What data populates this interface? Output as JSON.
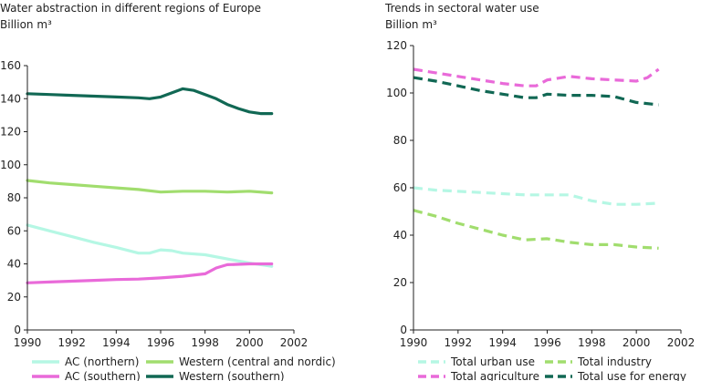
{
  "chart_data": [
    {
      "type": "line",
      "title": "Water abstraction in different regions of Europe",
      "ylabel": "Billion m³",
      "xlim": [
        1990,
        2002
      ],
      "ylim": [
        0,
        160
      ],
      "xticks": [
        1990,
        1992,
        1994,
        1996,
        1998,
        2000,
        2002
      ],
      "yticks": [
        0,
        20,
        40,
        60,
        80,
        100,
        120,
        140,
        160
      ],
      "grid": false,
      "legend_position": "bottom",
      "series": [
        {
          "name": "AC (northern)",
          "color": "#b5f7e4",
          "dashed": false,
          "x": [
            1990,
            1991,
            1992,
            1993,
            1994,
            1995,
            1995.5,
            1996,
            1996.5,
            1997,
            1998,
            1999,
            2000,
            2001
          ],
          "y": [
            63.5,
            60,
            56.5,
            53,
            50,
            46.5,
            46.5,
            48.5,
            48,
            46.5,
            45.5,
            43,
            40.5,
            38.5
          ]
        },
        {
          "name": "AC (southern)",
          "color": "#e96ad9",
          "dashed": false,
          "x": [
            1990,
            1991,
            1992,
            1993,
            1994,
            1995,
            1996,
            1997,
            1998,
            1998.5,
            1999,
            2000,
            2001
          ],
          "y": [
            28.5,
            29,
            29.5,
            30,
            30.5,
            30.8,
            31.5,
            32.5,
            34,
            37.5,
            39.5,
            40,
            40
          ]
        },
        {
          "name": "Western (central and nordic)",
          "color": "#a1dd6e",
          "dashed": false,
          "x": [
            1990,
            1991,
            1992,
            1993,
            1994,
            1995,
            1996,
            1997,
            1998,
            1999,
            2000,
            2001
          ],
          "y": [
            90.5,
            89,
            88,
            87,
            86,
            85,
            83.5,
            84,
            84,
            83.5,
            84,
            83
          ]
        },
        {
          "name": "Western (southern)",
          "color": "#116854",
          "dashed": false,
          "x": [
            1990,
            1991,
            1992,
            1993,
            1994,
            1995,
            1995.5,
            1996,
            1996.5,
            1997,
            1997.5,
            1998,
            1998.5,
            1999,
            1999.5,
            2000,
            2000.5,
            2001
          ],
          "y": [
            143,
            142.5,
            142,
            141.5,
            141,
            140.5,
            140,
            141,
            143.5,
            146,
            145,
            142.5,
            140,
            136.5,
            134,
            132,
            131,
            131
          ]
        }
      ]
    },
    {
      "type": "line",
      "title": "Trends in sectoral water use",
      "ylabel": "Billion m³",
      "xlim": [
        1990,
        2002
      ],
      "ylim": [
        0,
        120
      ],
      "xticks": [
        1990,
        1992,
        1994,
        1996,
        1998,
        2000,
        2002
      ],
      "yticks": [
        0,
        20,
        40,
        60,
        80,
        100,
        120
      ],
      "grid": false,
      "legend_position": "bottom",
      "series": [
        {
          "name": "Total urban use",
          "color": "#b5f7e4",
          "dashed": true,
          "x": [
            1990,
            1991,
            1992,
            1993,
            1994,
            1995,
            1996,
            1997,
            1998,
            1999,
            2000,
            2001
          ],
          "y": [
            60,
            59,
            58.5,
            58,
            57.5,
            57,
            57,
            57,
            54.5,
            53,
            53,
            53.5
          ]
        },
        {
          "name": "Total agriculture",
          "color": "#e96ad9",
          "dashed": true,
          "x": [
            1990,
            1991,
            1992,
            1993,
            1994,
            1995,
            1995.5,
            1996,
            1997,
            1998,
            1999,
            2000,
            2000.5,
            2001
          ],
          "y": [
            110,
            108.5,
            107,
            105.5,
            104,
            103,
            103,
            105.5,
            107,
            106,
            105.5,
            105,
            106.5,
            110
          ]
        },
        {
          "name": "Total industry",
          "color": "#a1dd6e",
          "dashed": true,
          "x": [
            1990,
            1991,
            1992,
            1993,
            1994,
            1995,
            1996,
            1997,
            1998,
            1999,
            2000,
            2001
          ],
          "y": [
            50.5,
            48,
            45,
            42.5,
            40,
            38,
            38.5,
            37,
            36,
            36,
            35,
            34.5
          ]
        },
        {
          "name": "Total use for energy",
          "color": "#116854",
          "dashed": true,
          "x": [
            1990,
            1991,
            1992,
            1993,
            1994,
            1995,
            1995.5,
            1996,
            1997,
            1998,
            1999,
            2000,
            2001
          ],
          "y": [
            106.5,
            105,
            103,
            101,
            99.5,
            98,
            98,
            99.5,
            99,
            99,
            98.5,
            96,
            95
          ]
        }
      ]
    }
  ]
}
